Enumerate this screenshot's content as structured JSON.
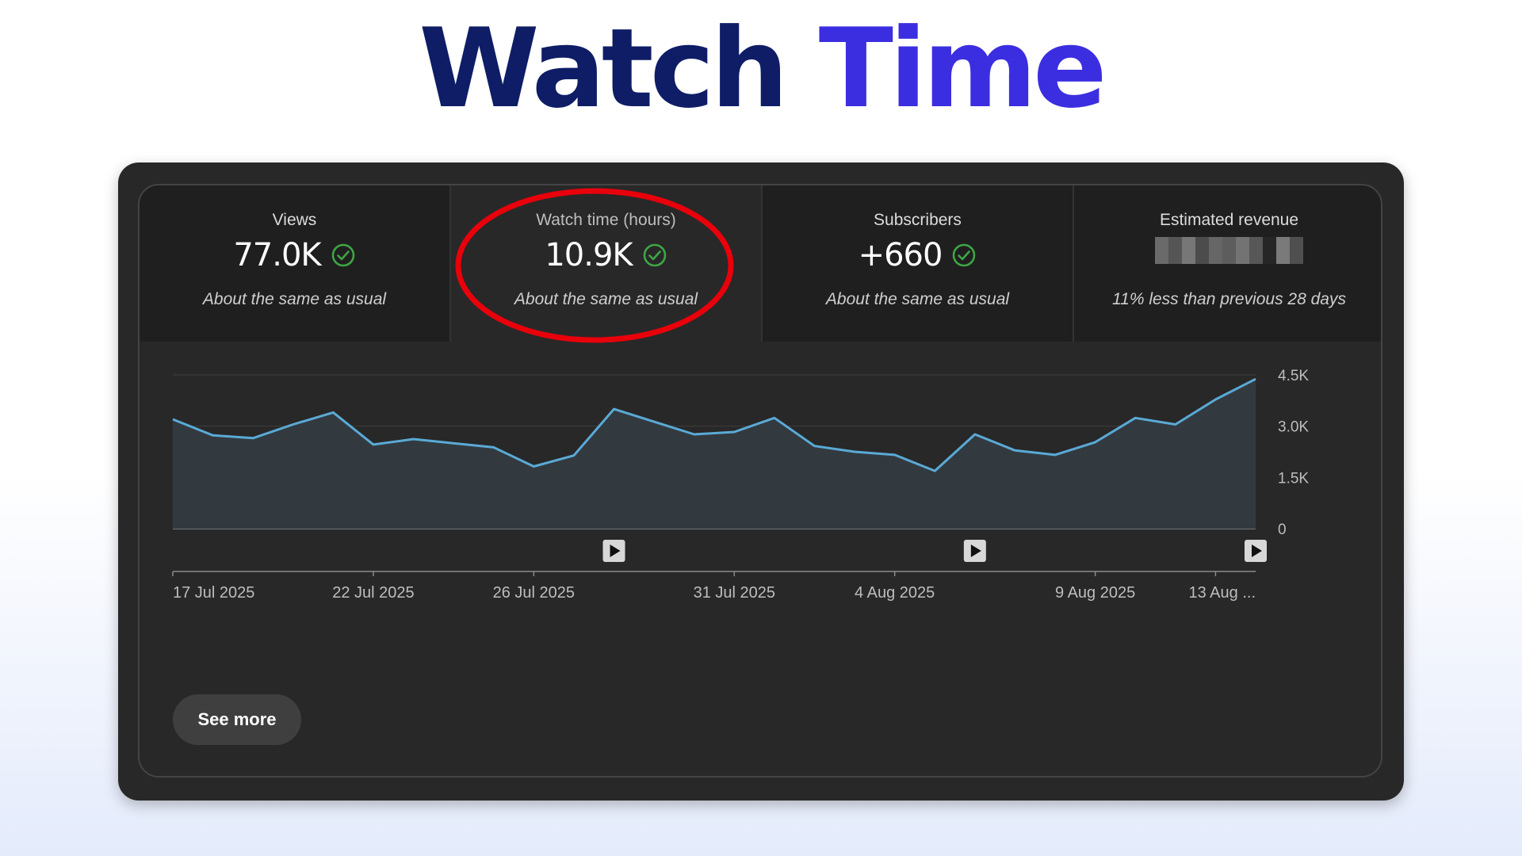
{
  "headline": {
    "word1": "Watch",
    "word2": "Time"
  },
  "colors": {
    "headline_dark": "#0f1d66",
    "headline_accent": "#3b2ee0",
    "panel_bg": "#282828",
    "line": "#5aaad6",
    "check": "#3ea545",
    "highlight": "#e8000b"
  },
  "tabs": [
    {
      "label": "Views",
      "value": "77.0K",
      "icon": "check-circle-icon",
      "note": "About the same as usual"
    },
    {
      "label": "Watch time (hours)",
      "value": "10.9K",
      "icon": "check-circle-icon",
      "note": "About the same as usual"
    },
    {
      "label": "Subscribers",
      "value": "+660",
      "icon": "check-circle-icon",
      "note": "About the same as usual"
    },
    {
      "label": "Estimated revenue",
      "value_redacted": true,
      "note": "11% less than previous 28 days"
    }
  ],
  "chart_data": {
    "type": "area",
    "title": "",
    "xlabel": "",
    "ylabel": "",
    "ylim": [
      0,
      4500
    ],
    "y_ticks": [
      "4.5K",
      "3.0K",
      "1.5K",
      "0"
    ],
    "x_tick_labels": [
      "17 Jul 2025",
      "22 Jul 2025",
      "26 Jul 2025",
      "31 Jul 2025",
      "4 Aug 2025",
      "9 Aug 2025",
      "13 Aug ..."
    ],
    "x": [
      "17 Jul 2025",
      "18 Jul 2025",
      "19 Jul 2025",
      "20 Jul 2025",
      "21 Jul 2025",
      "22 Jul 2025",
      "23 Jul 2025",
      "24 Jul 2025",
      "25 Jul 2025",
      "26 Jul 2025",
      "27 Jul 2025",
      "28 Jul 2025",
      "29 Jul 2025",
      "30 Jul 2025",
      "31 Jul 2025",
      "1 Aug 2025",
      "2 Aug 2025",
      "3 Aug 2025",
      "4 Aug 2025",
      "5 Aug 2025",
      "6 Aug 2025",
      "7 Aug 2025",
      "8 Aug 2025",
      "9 Aug 2025",
      "10 Aug 2025",
      "11 Aug 2025",
      "12 Aug 2025",
      "13 Aug 2025"
    ],
    "values": [
      3200,
      2730,
      2650,
      3050,
      3400,
      2460,
      2620,
      2500,
      2380,
      1820,
      2140,
      3500,
      3130,
      2760,
      2830,
      3240,
      2420,
      2250,
      2160,
      1690,
      2760,
      2290,
      2160,
      2530,
      3240,
      3050,
      3780,
      4380
    ],
    "video_markers": [
      "28 Jul 2025",
      "6 Aug 2025",
      "13 Aug 2025"
    ],
    "grid": true
  },
  "see_more_label": "See more"
}
